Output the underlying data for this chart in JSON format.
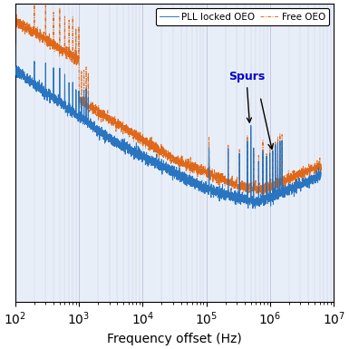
{
  "title": "",
  "xlabel": "Frequency offset (Hz)",
  "ylabel": "",
  "legend_entries": [
    "PLL locked OEO",
    "Free OEO"
  ],
  "legend_colors": [
    "#1f6fbe",
    "#e05a00"
  ],
  "legend_styles": [
    "-",
    "-."
  ],
  "annotation_text": "Spurs",
  "xlim": [
    100,
    10000000.0
  ],
  "ylim": [
    -165,
    -75
  ],
  "background_color": "#e8eef8",
  "grid_color": "#aaaacc",
  "fig_width": 3.85,
  "fig_height": 3.85,
  "dpi": 100
}
